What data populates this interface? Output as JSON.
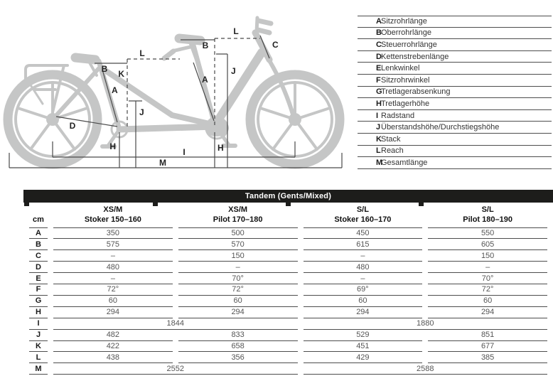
{
  "colors": {
    "bar_black": "#1d1d1b",
    "line_gray": "#4d4d4d",
    "bike_gray": "#c5c6c6",
    "value_gray": "#555555"
  },
  "diagram": {
    "labels": {
      "rear_l": "L",
      "rear_b": "B",
      "rear_k": "K",
      "rear_a": "A",
      "rear_d": "D",
      "rear_h": "H",
      "rear_j": "J",
      "front_l": "L",
      "front_b": "B",
      "front_c": "C",
      "front_a": "A",
      "front_j": "J",
      "front_h": "H",
      "wheelbase": "I",
      "total_length": "M"
    }
  },
  "legend": {
    "items": [
      {
        "key": "A",
        "label": "Sitzrohrlänge"
      },
      {
        "key": "B",
        "label": "Oberrohrlänge"
      },
      {
        "key": "C",
        "label": "Steuerrohrlänge"
      },
      {
        "key": "D",
        "label": "Kettenstrebenlänge"
      },
      {
        "key": "E",
        "label": "Lenkwinkel"
      },
      {
        "key": "F",
        "label": "Sitzrohrwinkel"
      },
      {
        "key": "G",
        "label": "Tretlagerabsenkung"
      },
      {
        "key": "H",
        "label": "Tretlagerhöhe"
      },
      {
        "key": "I",
        "label": "Radstand"
      },
      {
        "key": "J",
        "label": "Überstandshöhe/Durchstiegshöhe"
      },
      {
        "key": "K",
        "label": "Stack"
      },
      {
        "key": "L",
        "label": "Reach"
      },
      {
        "key": "M",
        "label": "Gesamtlänge"
      }
    ]
  },
  "table": {
    "title": "Tandem (Gents/Mixed)",
    "unit": "cm",
    "columns": [
      {
        "size": "XS/M",
        "rider": "Stoker 150–160"
      },
      {
        "size": "XS/M",
        "rider": "Pilot 170–180"
      },
      {
        "size": "S/L",
        "rider": "Stoker 160–170"
      },
      {
        "size": "S/L",
        "rider": "Pilot 180–190"
      }
    ],
    "rows": [
      {
        "key": "A",
        "values": [
          "350",
          "500",
          "450",
          "550"
        ]
      },
      {
        "key": "B",
        "values": [
          "575",
          "570",
          "615",
          "605"
        ]
      },
      {
        "key": "C",
        "values": [
          "–",
          "150",
          "–",
          "150"
        ]
      },
      {
        "key": "D",
        "values": [
          "480",
          "–",
          "480",
          "–"
        ]
      },
      {
        "key": "E",
        "values": [
          "–",
          "70°",
          "–",
          "70°"
        ]
      },
      {
        "key": "F",
        "values": [
          "72°",
          "72°",
          "69°",
          "72°"
        ]
      },
      {
        "key": "G",
        "values": [
          "60",
          "60",
          "60",
          "60"
        ]
      },
      {
        "key": "H",
        "values": [
          "294",
          "294",
          "294",
          "294"
        ]
      },
      {
        "key": "I",
        "merged": true,
        "values": [
          "1844",
          "1880"
        ]
      },
      {
        "key": "J",
        "values": [
          "482",
          "833",
          "529",
          "851"
        ]
      },
      {
        "key": "K",
        "values": [
          "422",
          "658",
          "451",
          "677"
        ]
      },
      {
        "key": "L",
        "values": [
          "438",
          "356",
          "429",
          "385"
        ]
      },
      {
        "key": "M",
        "merged": true,
        "values": [
          "2552",
          "2588"
        ]
      }
    ]
  }
}
